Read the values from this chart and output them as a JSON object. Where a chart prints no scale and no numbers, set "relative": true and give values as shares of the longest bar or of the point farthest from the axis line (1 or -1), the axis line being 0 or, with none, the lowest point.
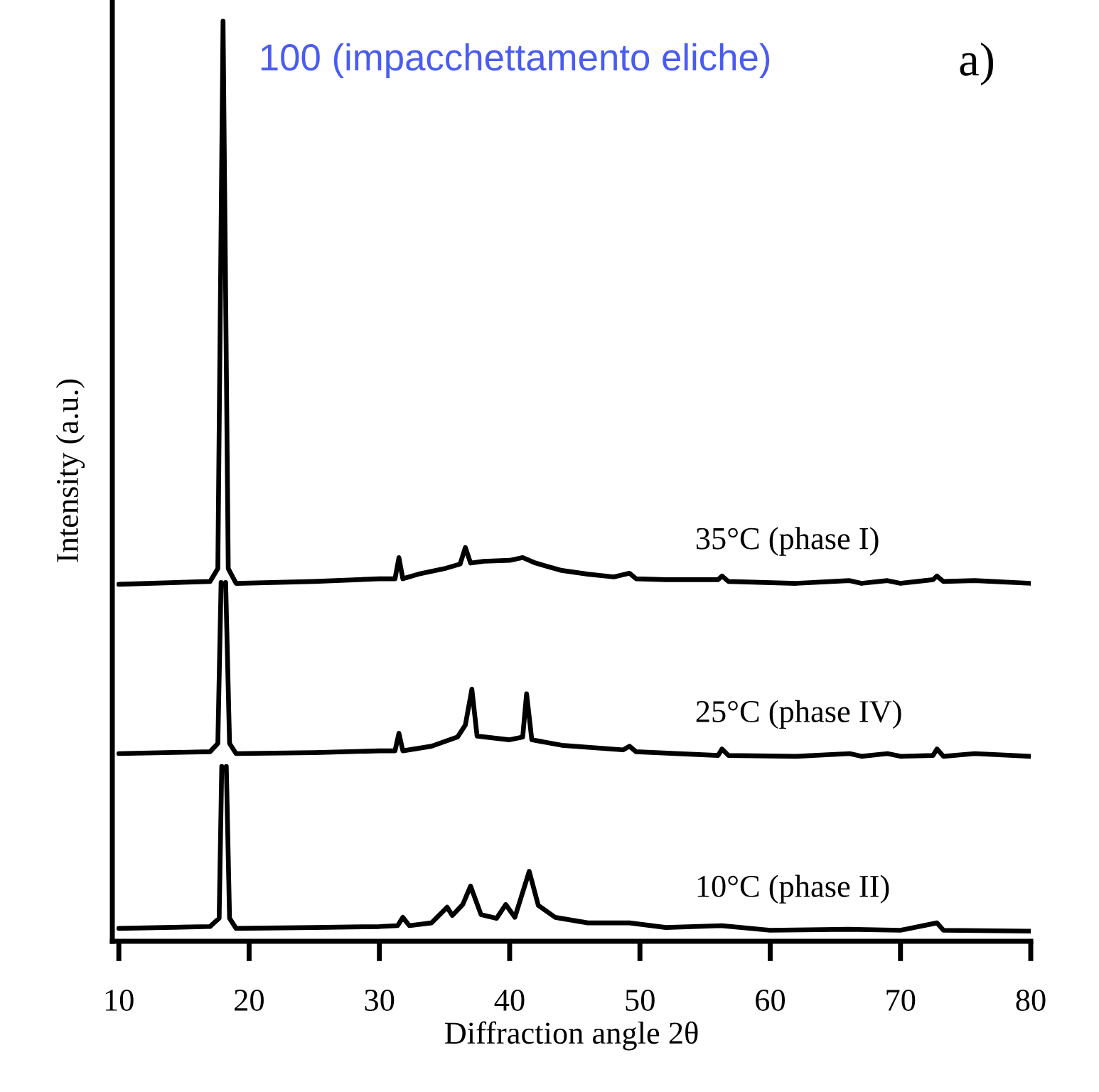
{
  "chart_data": {
    "type": "line",
    "relative": true,
    "xlabel": "Diffraction angle 2θ",
    "ylabel": "Intensity (a.u.)",
    "xlim": [
      9.5,
      80
    ],
    "xticks": [
      10,
      20,
      30,
      40,
      50,
      60,
      70,
      80
    ],
    "grid": false,
    "legend": false,
    "marker": "none",
    "line_style": "solid",
    "tick_labels": "x",
    "annotations": [
      {
        "text": "100 (impacchettamento eliche)",
        "x": 18,
        "y": 1.0
      },
      "a)"
    ],
    "series": [
      {
        "name": "35°C (phase I)",
        "color": "#000000",
        "x": [
          10,
          17.0,
          17.6,
          18.0,
          18.4,
          19.0,
          25,
          30,
          31.2,
          31.5,
          31.8,
          33,
          35,
          36.2,
          36.6,
          37.0,
          38,
          40,
          41.0,
          42,
          44,
          46,
          48,
          49.2,
          49.7,
          52,
          56,
          56.3,
          56.8,
          62,
          66.1,
          67,
          69,
          70,
          72.5,
          72.8,
          73.3,
          75.7,
          80
        ],
        "values": [
          0.388,
          0.391,
          0.405,
          1.0,
          0.405,
          0.389,
          0.391,
          0.394,
          0.394,
          0.417,
          0.394,
          0.399,
          0.405,
          0.41,
          0.428,
          0.411,
          0.413,
          0.414,
          0.417,
          0.411,
          0.403,
          0.399,
          0.396,
          0.4,
          0.394,
          0.393,
          0.393,
          0.397,
          0.391,
          0.389,
          0.392,
          0.389,
          0.392,
          0.389,
          0.393,
          0.397,
          0.391,
          0.392,
          0.389
        ]
      },
      {
        "name": "25°C (phase IV)",
        "color": "#000000",
        "x": [
          10,
          17.0,
          17.6,
          17.85,
          18.0,
          18.2,
          18.5,
          19.0,
          25,
          30,
          31.2,
          31.5,
          31.8,
          34,
          36.0,
          36.6,
          37.1,
          37.5,
          40,
          41.0,
          41.3,
          41.7,
          44,
          48.7,
          49.2,
          49.7,
          56,
          56.3,
          56.8,
          62,
          66.1,
          67,
          69,
          70,
          72.5,
          72.8,
          73.3,
          75.7,
          80
        ],
        "values": [
          0.204,
          0.206,
          0.215,
          0.39,
          null,
          0.39,
          0.215,
          0.204,
          0.205,
          0.207,
          0.207,
          0.226,
          0.207,
          0.212,
          0.222,
          0.235,
          0.274,
          0.223,
          0.219,
          0.222,
          0.269,
          0.219,
          0.213,
          0.208,
          0.212,
          0.206,
          0.202,
          0.209,
          0.202,
          0.201,
          0.204,
          0.201,
          0.204,
          0.201,
          0.202,
          0.209,
          0.201,
          0.204,
          0.201
        ]
      },
      {
        "name": "10°C (phase II)",
        "color": "#000000",
        "x": [
          10,
          17.0,
          17.7,
          17.9,
          18.05,
          18.25,
          18.5,
          19.0,
          25,
          30,
          31.4,
          31.8,
          32.3,
          34,
          35.2,
          35.6,
          36.4,
          37.0,
          37.8,
          39.0,
          39.7,
          40.4,
          41.5,
          42.2,
          43.5,
          46,
          49.2,
          52,
          56.3,
          60,
          66,
          70,
          72.8,
          73.3,
          80
        ],
        "values": [
          0.014,
          0.016,
          0.025,
          0.19,
          null,
          0.19,
          0.025,
          0.014,
          0.015,
          0.016,
          0.017,
          0.026,
          0.017,
          0.02,
          0.037,
          0.028,
          0.04,
          0.06,
          0.029,
          0.025,
          0.04,
          0.026,
          0.076,
          0.039,
          0.026,
          0.02,
          0.02,
          0.015,
          0.017,
          0.012,
          0.013,
          0.012,
          0.02,
          0.012,
          0.011
        ]
      }
    ]
  }
}
